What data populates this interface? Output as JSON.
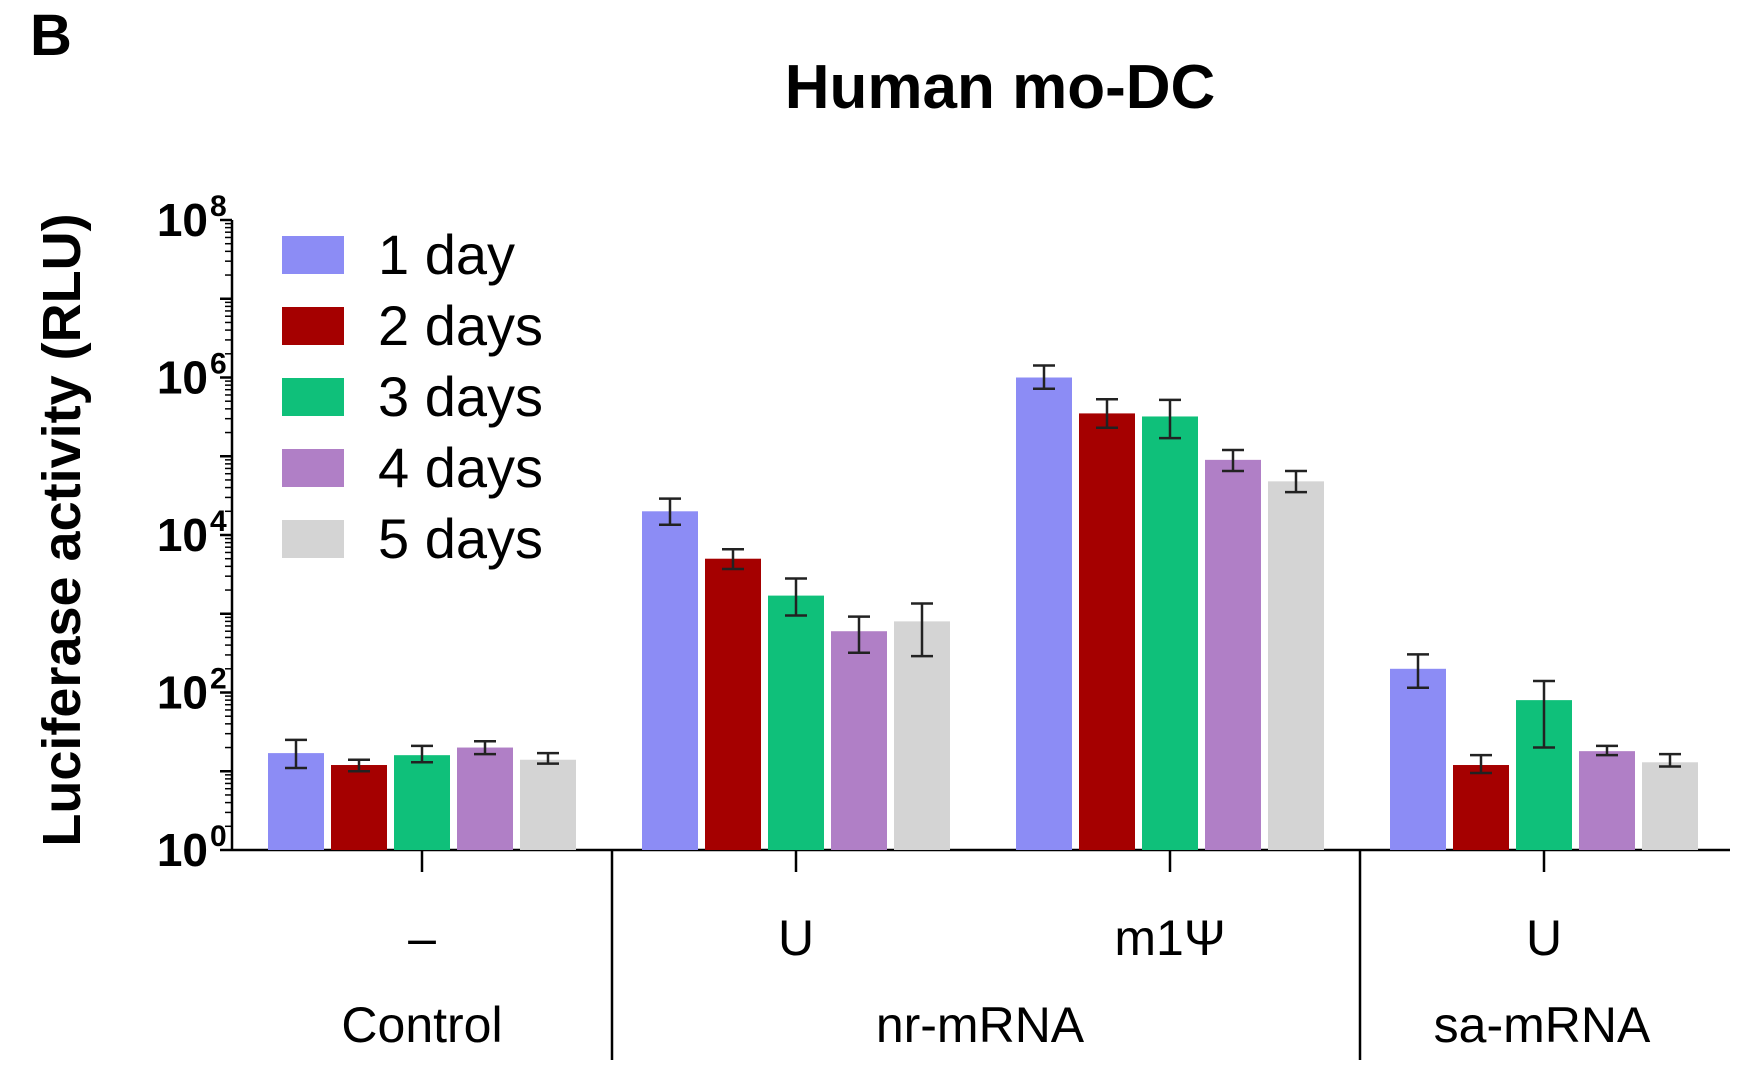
{
  "chart_data": {
    "type": "bar",
    "panel_label": "B",
    "title": "Human mo-DC",
    "ylabel": "Luciferase activity (RLU)",
    "yscale": "log10",
    "ylim": [
      1,
      100000000
    ],
    "y_ticks": [
      {
        "base": "10",
        "exp": "0"
      },
      {
        "base": "10",
        "exp": "2"
      },
      {
        "base": "10",
        "exp": "4"
      },
      {
        "base": "10",
        "exp": "6"
      },
      {
        "base": "10",
        "exp": "8"
      }
    ],
    "legend_position": "top-left",
    "groups": [
      {
        "sublabel": "–",
        "group_label": "Control"
      },
      {
        "sublabel": "U",
        "group_label": "nr-mRNA"
      },
      {
        "sublabel": "m1Ψ",
        "group_label": "nr-mRNA"
      },
      {
        "sublabel": "U",
        "group_label": "sa-mRNA"
      }
    ],
    "category_labels": [
      "Control",
      "nr-mRNA",
      "sa-mRNA"
    ],
    "series": [
      {
        "name": "1 day",
        "color": "#8c8cf5",
        "values": [
          17,
          20000,
          1000000,
          200
        ],
        "err_low": [
          11,
          13500,
          720000,
          115
        ],
        "err_high": [
          25,
          29000,
          1420000,
          305
        ]
      },
      {
        "name": "2 days",
        "color": "#a50000",
        "values": [
          12,
          5000,
          350000,
          12
        ],
        "err_low": [
          10,
          3700,
          230000,
          9.5
        ],
        "err_high": [
          14,
          6600,
          530000,
          16
        ]
      },
      {
        "name": "3 days",
        "color": "#0fc07a",
        "values": [
          16,
          1700,
          320000,
          80
        ],
        "err_low": [
          13,
          950,
          170000,
          20
        ],
        "err_high": [
          21,
          2800,
          520000,
          140
        ]
      },
      {
        "name": "4 days",
        "color": "#b07fc6",
        "values": [
          20,
          600,
          90000,
          18
        ],
        "err_low": [
          16.5,
          320,
          65000,
          16
        ],
        "err_high": [
          24,
          920,
          120000,
          21
        ]
      },
      {
        "name": "5 days",
        "color": "#d4d4d4",
        "values": [
          14,
          800,
          48000,
          13
        ],
        "err_low": [
          12.5,
          290,
          35000,
          11.5
        ],
        "err_high": [
          17,
          1350,
          65000,
          16.5
        ]
      }
    ]
  }
}
